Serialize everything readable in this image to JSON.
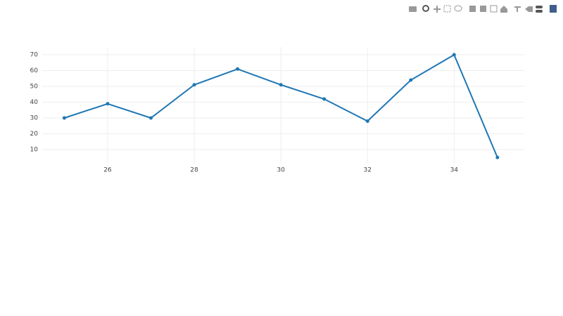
{
  "chart_data": {
    "type": "line",
    "x": [
      25,
      26,
      27,
      28,
      29,
      30,
      31,
      32,
      33,
      34,
      35
    ],
    "series": [
      {
        "color": "#1f77b4",
        "values": [
          30,
          39,
          30,
          51,
          61,
          51,
          42,
          28,
          54,
          70,
          5
        ]
      }
    ],
    "xlim": [
      24.49,
      35.62
    ],
    "xticks": [
      26,
      28,
      30,
      32,
      34
    ],
    "ylim": [
      1.1,
      74.9
    ],
    "yticks": [
      10,
      20,
      30,
      40,
      50,
      60,
      70
    ],
    "grid": true
  }
}
